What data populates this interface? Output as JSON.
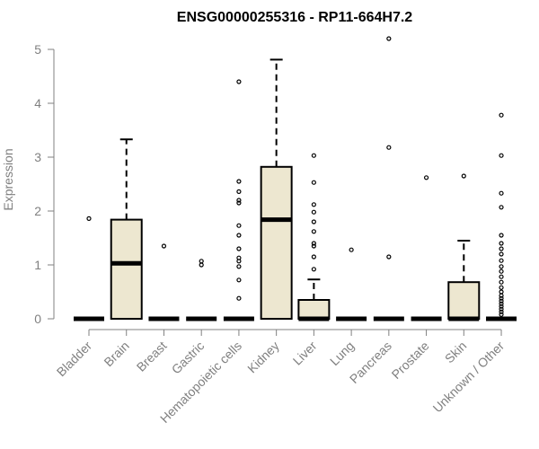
{
  "chart_data": {
    "type": "box",
    "title": "ENSG00000255316 - RP11-664H7.2",
    "xlabel": "",
    "ylabel": "Expression",
    "ylim": [
      0,
      5
    ],
    "yticks": [
      0,
      1,
      2,
      3,
      4,
      5
    ],
    "grid": false,
    "legend": "none",
    "box_fill": "#ede7d0",
    "categories": [
      "Bladder",
      "Brain",
      "Breast",
      "Gastric",
      "Hematopoietic cells",
      "Kidney",
      "Liver",
      "Lung",
      "Pancreas",
      "Prostate",
      "Skin",
      "Unknown / Other"
    ],
    "boxes": [
      {
        "q1": 0,
        "median": 0,
        "q3": 0,
        "whisker_low": 0,
        "whisker_high": 0,
        "outliers": [
          1.86
        ]
      },
      {
        "q1": 0,
        "median": 1.03,
        "q3": 1.84,
        "whisker_low": 0,
        "whisker_high": 3.33,
        "outliers": []
      },
      {
        "q1": 0,
        "median": 0,
        "q3": 0,
        "whisker_low": 0,
        "whisker_high": 0,
        "outliers": [
          1.35
        ]
      },
      {
        "q1": 0,
        "median": 0,
        "q3": 0,
        "whisker_low": 0,
        "whisker_high": 0,
        "outliers": [
          1.0,
          1.07
        ]
      },
      {
        "q1": 0,
        "median": 0,
        "q3": 0,
        "whisker_low": 0,
        "whisker_high": 0,
        "outliers": [
          0.38,
          0.72,
          0.97,
          1.07,
          1.13,
          1.3,
          1.55,
          1.73,
          2.15,
          2.2,
          2.36,
          2.55,
          4.4
        ]
      },
      {
        "q1": 0,
        "median": 1.84,
        "q3": 2.82,
        "whisker_low": 0,
        "whisker_high": 4.81,
        "outliers": []
      },
      {
        "q1": 0,
        "median": 0,
        "q3": 0.35,
        "whisker_low": 0,
        "whisker_high": 0.73,
        "outliers": [
          0.92,
          1.15,
          1.35,
          1.4,
          1.62,
          1.8,
          1.98,
          2.12,
          2.53,
          3.03
        ]
      },
      {
        "q1": 0,
        "median": 0,
        "q3": 0,
        "whisker_low": 0,
        "whisker_high": 0,
        "outliers": [
          1.28
        ]
      },
      {
        "q1": 0,
        "median": 0,
        "q3": 0,
        "whisker_low": 0,
        "whisker_high": 0,
        "outliers": [
          1.15,
          3.18,
          5.2
        ]
      },
      {
        "q1": 0,
        "median": 0,
        "q3": 0,
        "whisker_low": 0,
        "whisker_high": 0,
        "outliers": [
          2.62
        ]
      },
      {
        "q1": 0,
        "median": 0,
        "q3": 0.68,
        "whisker_low": 0,
        "whisker_high": 1.45,
        "outliers": [
          2.65
        ]
      },
      {
        "q1": 0,
        "median": 0,
        "q3": 0,
        "whisker_low": 0,
        "whisker_high": 0,
        "outliers": [
          0.08,
          0.13,
          0.18,
          0.23,
          0.28,
          0.33,
          0.38,
          0.43,
          0.5,
          0.58,
          0.68,
          0.78,
          0.88,
          0.97,
          1.08,
          1.2,
          1.3,
          1.4,
          1.55,
          2.07,
          2.33,
          3.03,
          3.78
        ]
      }
    ]
  }
}
